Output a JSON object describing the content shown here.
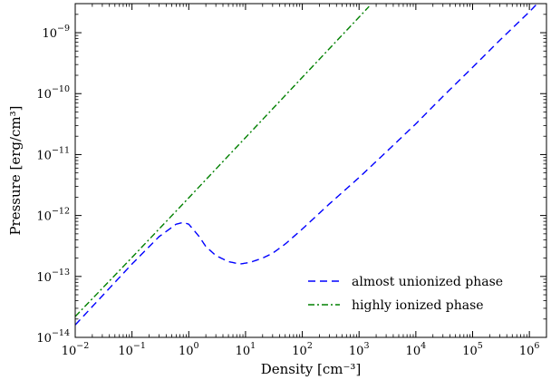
{
  "chart_data": {
    "type": "line",
    "xlabel": "Density [cm⁻³]",
    "ylabel": "Pressure [erg/cm³]",
    "x_scale": "log",
    "y_scale": "log",
    "xlim": [
      0.01,
      2000000
    ],
    "ylim": [
      1e-14,
      3e-09
    ],
    "x_ticks": [
      {
        "value": 0.01,
        "base": "10",
        "exp": "−2"
      },
      {
        "value": 0.1,
        "base": "10",
        "exp": "−1"
      },
      {
        "value": 1,
        "base": "10",
        "exp": "0"
      },
      {
        "value": 10,
        "base": "10",
        "exp": "1"
      },
      {
        "value": 100,
        "base": "10",
        "exp": "2"
      },
      {
        "value": 1000,
        "base": "10",
        "exp": "3"
      },
      {
        "value": 10000,
        "base": "10",
        "exp": "4"
      },
      {
        "value": 100000,
        "base": "10",
        "exp": "5"
      },
      {
        "value": 1000000,
        "base": "10",
        "exp": "6"
      }
    ],
    "y_ticks": [
      {
        "value": 1e-14,
        "base": "10",
        "exp": "−14"
      },
      {
        "value": 1e-13,
        "base": "10",
        "exp": "−13"
      },
      {
        "value": 1e-12,
        "base": "10",
        "exp": "−12"
      },
      {
        "value": 1e-11,
        "base": "10",
        "exp": "−11"
      },
      {
        "value": 1e-10,
        "base": "10",
        "exp": "−10"
      },
      {
        "value": 1e-09,
        "base": "10",
        "exp": "−9"
      }
    ],
    "grid": false,
    "legend_position": "lower-right",
    "series": [
      {
        "name": "almost unionized phase",
        "color": "#0000ff",
        "style": "dashed",
        "points": [
          [
            0.01,
            1.6e-14
          ],
          [
            0.03,
            4.8e-14
          ],
          [
            0.1,
            1.6e-13
          ],
          [
            0.3,
            4.5e-13
          ],
          [
            0.6,
            7.2e-13
          ],
          [
            0.8,
            7.7e-13
          ],
          [
            1.0,
            7.2e-13
          ],
          [
            1.5,
            4.6e-13
          ],
          [
            2,
            3.1e-13
          ],
          [
            3,
            2.2e-13
          ],
          [
            5,
            1.75e-13
          ],
          [
            8,
            1.6e-13
          ],
          [
            12,
            1.7e-13
          ],
          [
            20,
            2e-13
          ],
          [
            30,
            2.4e-13
          ],
          [
            50,
            3.4e-13
          ],
          [
            100,
            6e-13
          ],
          [
            300,
            1.55e-12
          ],
          [
            1000,
            4.2e-12
          ],
          [
            3000,
            1.1e-11
          ],
          [
            10000,
            3.2e-11
          ],
          [
            30000,
            9e-11
          ],
          [
            100000,
            2.7e-10
          ],
          [
            300000,
            7.5e-10
          ],
          [
            1000000,
            2.2e-09
          ],
          [
            2000000,
            4.3e-09
          ]
        ]
      },
      {
        "name": "highly ionized phase",
        "color": "#008000",
        "style": "dashdot",
        "points": [
          [
            0.01,
            2.2e-14
          ],
          [
            0.1,
            2.05e-13
          ],
          [
            1,
            1.95e-12
          ],
          [
            10,
            1.9e-11
          ],
          [
            100,
            1.85e-10
          ],
          [
            1000,
            1.8e-09
          ],
          [
            1500,
            2.7e-09
          ]
        ]
      }
    ]
  }
}
